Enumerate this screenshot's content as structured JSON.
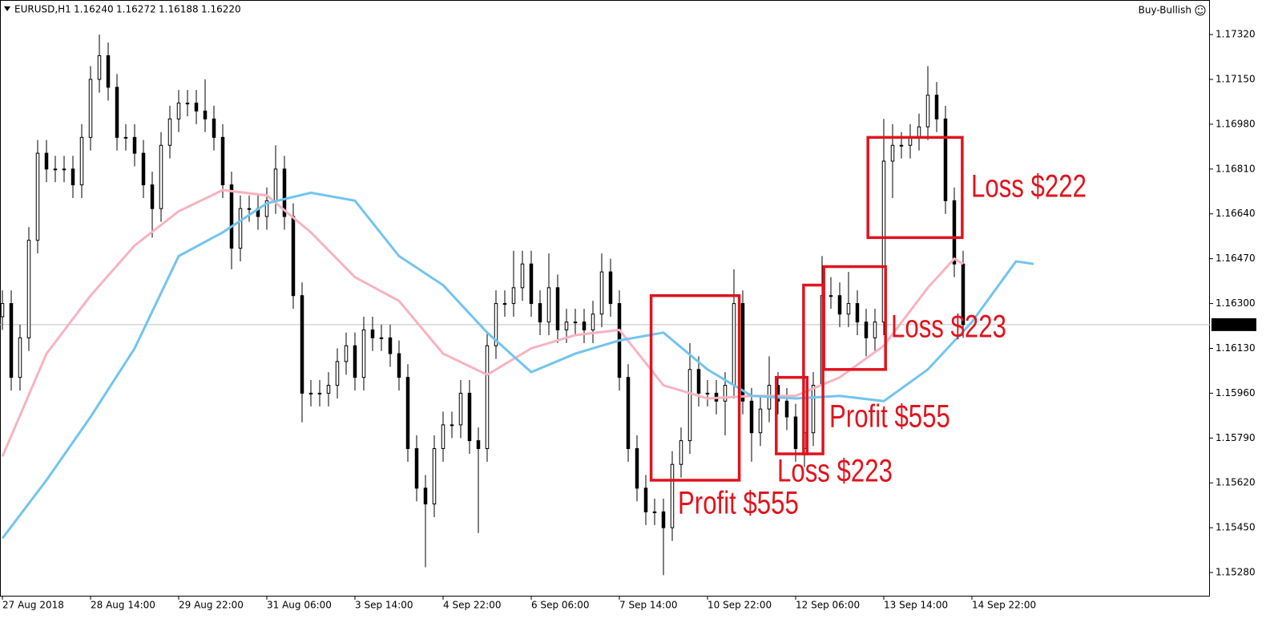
{
  "chart_data": {
    "type": "candlestick",
    "symbol": "EURUSD,H1",
    "header_prices": [
      "1.16240",
      "1.16272",
      "1.16188",
      "1.16220"
    ],
    "indicator": "Buy-Bullish",
    "open": [
      1.1625,
      1.163,
      1.1602,
      1.1617,
      1.1654,
      1.1687,
      1.1681,
      1.1681,
      1.1681,
      1.1675,
      1.1693,
      1.1715,
      1.1724,
      1.1712,
      1.1693,
      1.1693,
      1.1687,
      1.1675,
      1.1666,
      1.169,
      1.17,
      1.1706,
      1.1706,
      1.1703,
      1.17,
      1.1693,
      1.1675,
      1.1651,
      1.1666,
      1.1666,
      1.1663,
      1.1669,
      1.1681,
      1.1663,
      1.1633,
      1.1596,
      1.1596,
      1.1596,
      1.1599,
      1.1608,
      1.1614,
      1.1602,
      1.162,
      1.1617,
      1.1617,
      1.1611,
      1.1602,
      1.1575,
      1.156,
      1.1554,
      1.1575,
      1.1584,
      1.1584,
      1.1596,
      1.1578,
      1.1575,
      1.1614,
      1.163,
      1.163,
      1.1636,
      1.1645,
      1.163,
      1.1623,
      1.1636,
      1.162,
      1.1623,
      1.1623,
      1.162,
      1.1626,
      1.1642,
      1.163,
      1.1602,
      1.1575,
      1.156,
      1.1551,
      1.1551,
      1.1545,
      1.1569,
      1.1578,
      1.1605,
      1.1596,
      1.1596,
      1.1593,
      1.1599,
      1.163,
      1.1593,
      1.1581,
      1.159,
      1.1599,
      1.1593,
      1.1587,
      1.1575,
      1.1581,
      1.1599,
      1.1633,
      1.1633,
      1.1626,
      1.163,
      1.1623,
      1.1617,
      1.1623,
      1.1684,
      1.169,
      1.169,
      1.1693,
      1.1697,
      1.1709,
      1.17,
      1.1669,
      1.1645
    ],
    "high": [
      1.1635,
      1.1635,
      1.1622,
      1.1659,
      1.1692,
      1.1692,
      1.1686,
      1.1686,
      1.1686,
      1.1698,
      1.172,
      1.1732,
      1.1729,
      1.1717,
      1.1698,
      1.1698,
      1.1692,
      1.168,
      1.1695,
      1.1705,
      1.1711,
      1.1711,
      1.1711,
      1.1715,
      1.1705,
      1.1698,
      1.168,
      1.1671,
      1.1671,
      1.1671,
      1.1674,
      1.169,
      1.1686,
      1.1668,
      1.1638,
      1.1601,
      1.1601,
      1.1604,
      1.1613,
      1.1619,
      1.1619,
      1.1625,
      1.1625,
      1.1622,
      1.1622,
      1.1616,
      1.1607,
      1.158,
      1.1565,
      1.158,
      1.1589,
      1.1589,
      1.1601,
      1.1601,
      1.1583,
      1.1619,
      1.1635,
      1.1635,
      1.165,
      1.165,
      1.165,
      1.1635,
      1.1649,
      1.1641,
      1.1628,
      1.1628,
      1.1628,
      1.1631,
      1.1649,
      1.1647,
      1.1635,
      1.1607,
      1.158,
      1.1565,
      1.1556,
      1.1556,
      1.1574,
      1.1583,
      1.1615,
      1.161,
      1.1601,
      1.1601,
      1.1604,
      1.1643,
      1.1635,
      1.1598,
      1.1595,
      1.161,
      1.1604,
      1.1598,
      1.1592,
      1.1586,
      1.1604,
      1.1648,
      1.164,
      1.1638,
      1.1642,
      1.1635,
      1.1628,
      1.1628,
      1.17,
      1.1698,
      1.1695,
      1.1698,
      1.1702,
      1.172,
      1.1714,
      1.1705,
      1.1674,
      1.165
    ],
    "low": [
      1.162,
      1.1597,
      1.1597,
      1.1612,
      1.1649,
      1.1676,
      1.1676,
      1.1676,
      1.167,
      1.167,
      1.1688,
      1.171,
      1.1707,
      1.1688,
      1.1688,
      1.1682,
      1.167,
      1.1655,
      1.1661,
      1.1685,
      1.1695,
      1.1701,
      1.1698,
      1.1695,
      1.1688,
      1.167,
      1.1643,
      1.1646,
      1.1661,
      1.1658,
      1.1658,
      1.1664,
      1.1658,
      1.1628,
      1.1585,
      1.1591,
      1.1591,
      1.1591,
      1.1594,
      1.1603,
      1.1597,
      1.1597,
      1.1612,
      1.1612,
      1.1606,
      1.1597,
      1.157,
      1.1555,
      1.153,
      1.1549,
      1.157,
      1.1579,
      1.1579,
      1.1573,
      1.1543,
      1.157,
      1.1609,
      1.1625,
      1.1625,
      1.1631,
      1.1625,
      1.1618,
      1.1618,
      1.1615,
      1.1615,
      1.1618,
      1.1615,
      1.1615,
      1.1621,
      1.1625,
      1.1597,
      1.157,
      1.1555,
      1.1546,
      1.1546,
      1.1527,
      1.154,
      1.1564,
      1.1573,
      1.1591,
      1.1591,
      1.1588,
      1.158,
      1.1594,
      1.1588,
      1.157,
      1.1576,
      1.1585,
      1.1588,
      1.1582,
      1.157,
      1.1568,
      1.1576,
      1.1594,
      1.1628,
      1.1621,
      1.1621,
      1.1618,
      1.161,
      1.1612,
      1.1618,
      1.167,
      1.1685,
      1.1685,
      1.1688,
      1.1692,
      1.1695,
      1.1664,
      1.164,
      1.1617
    ],
    "close": [
      1.163,
      1.1602,
      1.1617,
      1.1654,
      1.1687,
      1.1681,
      1.1681,
      1.1681,
      1.1675,
      1.1693,
      1.1715,
      1.1724,
      1.1712,
      1.1693,
      1.1693,
      1.1687,
      1.1675,
      1.1666,
      1.169,
      1.17,
      1.1706,
      1.1706,
      1.1703,
      1.17,
      1.1693,
      1.1675,
      1.1651,
      1.1666,
      1.1666,
      1.1663,
      1.1669,
      1.1681,
      1.1663,
      1.1633,
      1.1596,
      1.1596,
      1.1596,
      1.1599,
      1.1608,
      1.1614,
      1.1602,
      1.162,
      1.1617,
      1.1617,
      1.1611,
      1.1602,
      1.1575,
      1.156,
      1.1554,
      1.1575,
      1.1584,
      1.1584,
      1.1596,
      1.1578,
      1.1575,
      1.1614,
      1.163,
      1.163,
      1.1636,
      1.1645,
      1.163,
      1.1623,
      1.1636,
      1.162,
      1.1623,
      1.1623,
      1.162,
      1.1626,
      1.1642,
      1.163,
      1.1602,
      1.1575,
      1.156,
      1.1551,
      1.1551,
      1.1545,
      1.1569,
      1.1578,
      1.1605,
      1.1596,
      1.1596,
      1.1593,
      1.1599,
      1.163,
      1.1593,
      1.1581,
      1.159,
      1.1599,
      1.1593,
      1.1587,
      1.1575,
      1.1581,
      1.1599,
      1.1633,
      1.1633,
      1.1626,
      1.163,
      1.1623,
      1.1617,
      1.1623,
      1.1684,
      1.169,
      1.169,
      1.1693,
      1.1697,
      1.1709,
      1.17,
      1.1669,
      1.1645,
      1.1622
    ],
    "moving_averages": [
      {
        "color": "#f7b3bf",
        "x": [
          0,
          5,
          10,
          15,
          20,
          25,
          30,
          35,
          40,
          45,
          50,
          55,
          60,
          65,
          70,
          75,
          80,
          85,
          90,
          95,
          100,
          105,
          108,
          109
        ],
        "values": [
          1.1572,
          1.1611,
          1.1633,
          1.1652,
          1.1665,
          1.1673,
          1.1671,
          1.1657,
          1.164,
          1.1631,
          1.1611,
          1.1603,
          1.1613,
          1.1618,
          1.162,
          1.1599,
          1.1594,
          1.1595,
          1.1595,
          1.1602,
          1.1614,
          1.1636,
          1.1647,
          1.1645
        ]
      },
      {
        "color": "#72c4ef",
        "x": [
          0,
          5,
          10,
          15,
          20,
          25,
          30,
          35,
          40,
          45,
          50,
          55,
          60,
          65,
          70,
          75,
          80,
          85,
          90,
          95,
          100,
          105,
          110,
          115,
          117
        ],
        "values": [
          1.1541,
          1.1563,
          1.1587,
          1.1613,
          1.1648,
          1.1657,
          1.1668,
          1.1672,
          1.1669,
          1.1648,
          1.1637,
          1.1619,
          1.1604,
          1.1611,
          1.1616,
          1.1619,
          1.1605,
          1.1595,
          1.1594,
          1.1595,
          1.1593,
          1.1605,
          1.1623,
          1.1646,
          1.1645
        ]
      }
    ],
    "annotations": [
      {
        "label": "Profit $555",
        "x": [
          73.6,
          83.6
        ],
        "y": [
          1.1563,
          1.1633
        ]
      },
      {
        "label": "Loss $223",
        "x": [
          87.8,
          91.3
        ],
        "y": [
          1.1573,
          1.1602
        ]
      },
      {
        "label": "Profit $555",
        "x": [
          90.9,
          93.1
        ],
        "y": [
          1.1573,
          1.1637
        ]
      },
      {
        "label": "Loss $223",
        "x": [
          93.2,
          100.2
        ],
        "y": [
          1.1605,
          1.1644
        ]
      },
      {
        "label": "Loss $222",
        "x": [
          98.2,
          108.9
        ],
        "y": [
          1.1655,
          1.1693
        ]
      }
    ],
    "last_price": {
      "value": 1.1622,
      "label": "1.16220"
    },
    "xlim": [
      0,
      137
    ],
    "ylim": [
      1.15189,
      1.17451
    ],
    "xticks": [
      {
        "value": 0,
        "label": "27 Aug 2018"
      },
      {
        "value": 10,
        "label": "28 Aug 14:00"
      },
      {
        "value": 20,
        "label": "29 Aug 22:00"
      },
      {
        "value": 30,
        "label": "31 Aug 06:00"
      },
      {
        "value": 40,
        "label": "3 Sep 14:00"
      },
      {
        "value": 50,
        "label": "4 Sep 22:00"
      },
      {
        "value": 60,
        "label": "6 Sep 06:00"
      },
      {
        "value": 70,
        "label": "7 Sep 14:00"
      },
      {
        "value": 80,
        "label": "10 Sep 22:00"
      },
      {
        "value": 90,
        "label": "12 Sep 06:00"
      },
      {
        "value": 100,
        "label": "13 Sep 14:00"
      },
      {
        "value": 110,
        "label": "14 Sep 22:00"
      }
    ],
    "yticks": [
      {
        "value": 1.1528,
        "label": "1.15280"
      },
      {
        "value": 1.1545,
        "label": "1.15450"
      },
      {
        "value": 1.1562,
        "label": "1.15620"
      },
      {
        "value": 1.1579,
        "label": "1.15790"
      },
      {
        "value": 1.1596,
        "label": "1.15960"
      },
      {
        "value": 1.1613,
        "label": "1.16130"
      },
      {
        "value": 1.163,
        "label": "1.16300"
      },
      {
        "value": 1.1647,
        "label": "1.16470"
      },
      {
        "value": 1.1664,
        "label": "1.16640"
      },
      {
        "value": 1.1681,
        "label": "1.16810"
      },
      {
        "value": 1.1698,
        "label": "1.16980"
      },
      {
        "value": 1.1715,
        "label": "1.17150"
      },
      {
        "value": 1.1732,
        "label": "1.17320"
      }
    ]
  }
}
